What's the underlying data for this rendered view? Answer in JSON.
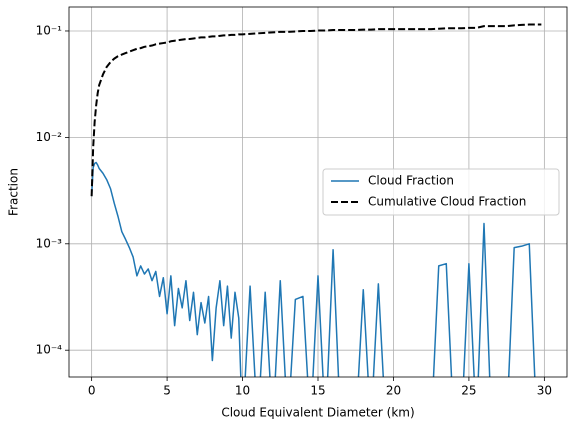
{
  "chart_data": {
    "type": "line",
    "xlabel": "Cloud Equivalent Diameter (km)",
    "ylabel": "Fraction",
    "x": [
      0,
      0.1,
      0.2,
      0.3,
      0.4,
      0.5,
      0.75,
      1,
      1.25,
      1.5,
      1.75,
      2,
      2.25,
      2.5,
      2.75,
      3,
      3.25,
      3.5,
      3.75,
      4,
      4.25,
      4.5,
      4.75,
      5,
      5.25,
      5.5,
      5.75,
      6,
      6.25,
      6.5,
      6.75,
      7,
      7.25,
      7.5,
      7.75,
      8,
      8.25,
      8.5,
      8.75,
      9,
      9.25,
      9.5,
      9.75,
      10,
      10.5,
      11,
      11.5,
      12,
      12.5,
      13,
      13.5,
      14,
      14.5,
      15,
      15.5,
      16,
      16.5,
      17,
      17.5,
      18,
      18.5,
      19,
      19.5,
      20,
      20.5,
      21,
      21.5,
      22,
      22.5,
      23,
      23.5,
      24,
      24.5,
      25,
      25.5,
      26,
      26.5,
      27,
      27.5,
      28,
      28.5,
      29,
      29.5,
      29.8
    ],
    "series": [
      {
        "name": "Cloud Fraction",
        "color": "#1f77b4",
        "style": "solid",
        "values": [
          0.0028,
          0.0052,
          0.0057,
          0.0058,
          0.0055,
          0.0051,
          0.0046,
          0.004,
          0.0033,
          0.0024,
          0.0018,
          0.0013,
          0.0011,
          0.00092,
          0.00075,
          0.0005,
          0.00062,
          0.00052,
          0.00058,
          0.00045,
          0.00055,
          0.00032,
          0.00048,
          0.00022,
          0.0005,
          0.00017,
          0.00038,
          0.00025,
          0.00045,
          0.00019,
          0.00035,
          0.00014,
          0.00028,
          0.00018,
          0.00032,
          8e-05,
          0.00025,
          0.00045,
          0.00017,
          0.0004,
          0.00013,
          0.00035,
          0.0002,
          0,
          0.0004,
          0,
          0.00035,
          0,
          0.00045,
          0,
          0.0003,
          0.00032,
          0,
          0.0005,
          0,
          0.00088,
          0,
          0,
          0,
          0.00037,
          0,
          0.00042,
          0,
          0,
          0,
          0,
          0,
          0,
          0,
          0.00062,
          0.00065,
          0,
          0,
          0.00065,
          0,
          0.00155,
          0,
          0,
          0,
          0.00092,
          0.00095,
          0.001,
          0,
          null
        ]
      },
      {
        "name": "Cumulative Cloud Fraction",
        "color": "#000000",
        "style": "dashed",
        "values": [
          0.0028,
          0.008,
          0.014,
          0.02,
          0.026,
          0.031,
          0.039,
          0.046,
          0.051,
          0.055,
          0.058,
          0.06,
          0.062,
          0.064,
          0.066,
          0.068,
          0.069,
          0.071,
          0.072,
          0.073,
          0.075,
          0.076,
          0.077,
          0.078,
          0.08,
          0.081,
          0.082,
          0.083,
          0.084,
          0.084,
          0.085,
          0.086,
          0.087,
          0.087,
          0.088,
          0.089,
          0.089,
          0.09,
          0.091,
          0.091,
          0.092,
          0.092,
          0.093,
          0.093,
          0.094,
          0.095,
          0.096,
          0.097,
          0.098,
          0.098,
          0.099,
          0.1,
          0.1,
          0.101,
          0.101,
          0.102,
          0.102,
          0.102,
          0.102,
          0.103,
          0.103,
          0.104,
          0.104,
          0.104,
          0.104,
          0.104,
          0.104,
          0.104,
          0.104,
          0.105,
          0.106,
          0.106,
          0.106,
          0.107,
          0.107,
          0.111,
          0.111,
          0.111,
          0.111,
          0.113,
          0.114,
          0.115,
          0.115,
          0.115
        ]
      }
    ],
    "xlim": [
      -1.5,
      31.5
    ],
    "xticks": [
      0,
      5,
      10,
      15,
      20,
      25,
      30
    ],
    "ylim": [
      5.6e-05,
      0.168
    ],
    "log_y": true,
    "yticks": [
      {
        "value": 0.1,
        "label": "10⁻¹"
      },
      {
        "value": 0.01,
        "label": "10⁻²"
      },
      {
        "value": 0.001,
        "label": "10⁻³"
      },
      {
        "value": 0.0001,
        "label": "10⁻⁴"
      }
    ],
    "grid": true,
    "legend": "center right"
  }
}
